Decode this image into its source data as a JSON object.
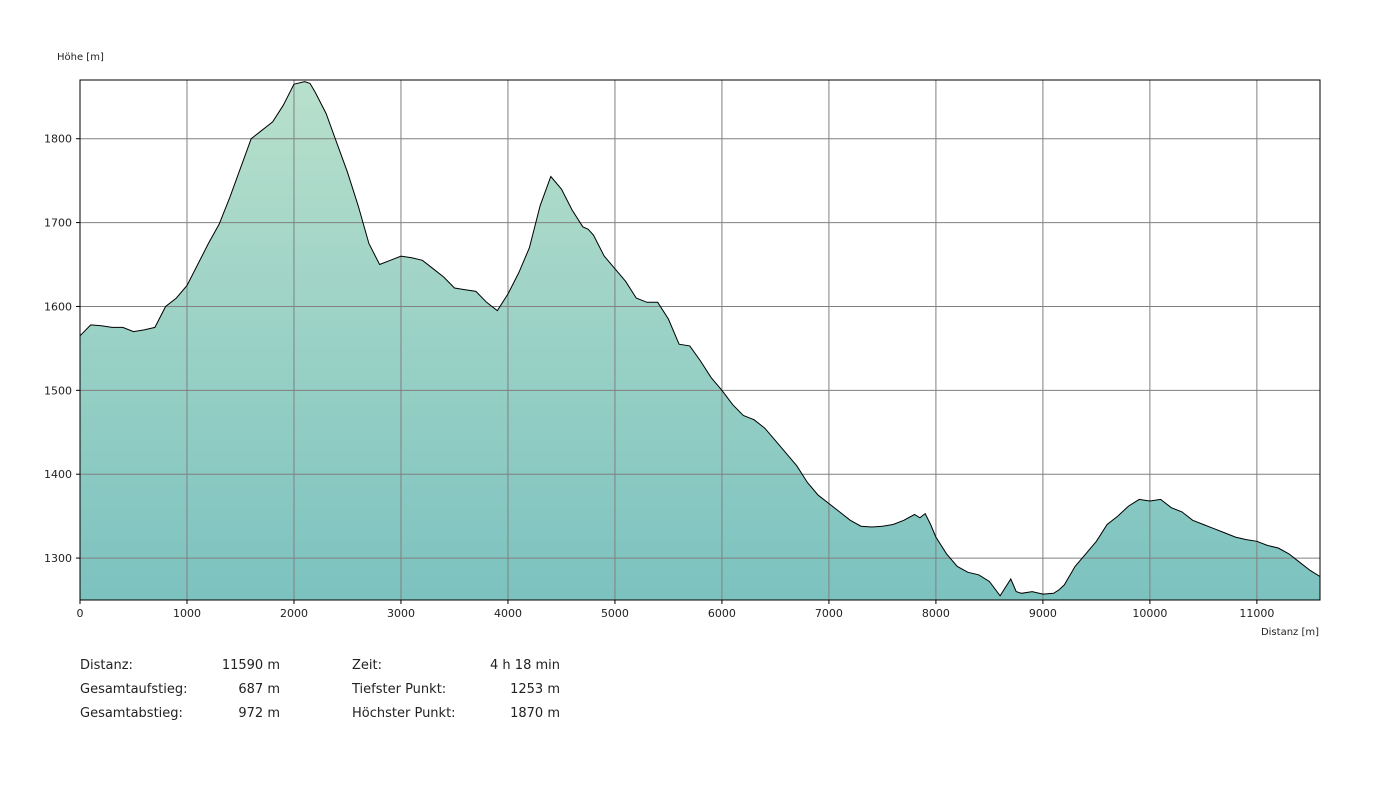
{
  "chart_data": {
    "type": "area",
    "ylabel": "Höhe [m]",
    "xlabel": "Distanz [m]",
    "xlim": [
      0,
      11590
    ],
    "ylim": [
      1250,
      1870
    ],
    "x_ticks": [
      0,
      1000,
      2000,
      3000,
      4000,
      5000,
      6000,
      7000,
      8000,
      9000,
      10000,
      11000
    ],
    "y_ticks": [
      1300,
      1400,
      1500,
      1600,
      1700,
      1800
    ],
    "grid": true,
    "fill_colors": [
      "#b8e0cc",
      "#7cc2bf"
    ],
    "line_color": "#000000",
    "points": [
      [
        0,
        1565
      ],
      [
        100,
        1578
      ],
      [
        200,
        1577
      ],
      [
        300,
        1575
      ],
      [
        400,
        1575
      ],
      [
        500,
        1570
      ],
      [
        600,
        1572
      ],
      [
        700,
        1575
      ],
      [
        800,
        1600
      ],
      [
        900,
        1610
      ],
      [
        1000,
        1625
      ],
      [
        1100,
        1650
      ],
      [
        1200,
        1675
      ],
      [
        1300,
        1698
      ],
      [
        1400,
        1730
      ],
      [
        1500,
        1765
      ],
      [
        1600,
        1800
      ],
      [
        1700,
        1810
      ],
      [
        1800,
        1820
      ],
      [
        1900,
        1840
      ],
      [
        2000,
        1865
      ],
      [
        2100,
        1868
      ],
      [
        2150,
        1866
      ],
      [
        2200,
        1855
      ],
      [
        2300,
        1830
      ],
      [
        2400,
        1795
      ],
      [
        2500,
        1760
      ],
      [
        2600,
        1720
      ],
      [
        2700,
        1675
      ],
      [
        2800,
        1650
      ],
      [
        2900,
        1655
      ],
      [
        3000,
        1660
      ],
      [
        3100,
        1658
      ],
      [
        3200,
        1655
      ],
      [
        3300,
        1645
      ],
      [
        3400,
        1635
      ],
      [
        3500,
        1622
      ],
      [
        3600,
        1620
      ],
      [
        3700,
        1618
      ],
      [
        3800,
        1605
      ],
      [
        3900,
        1595
      ],
      [
        4000,
        1615
      ],
      [
        4100,
        1640
      ],
      [
        4200,
        1670
      ],
      [
        4300,
        1720
      ],
      [
        4400,
        1755
      ],
      [
        4500,
        1740
      ],
      [
        4600,
        1715
      ],
      [
        4700,
        1695
      ],
      [
        4750,
        1692
      ],
      [
        4800,
        1685
      ],
      [
        4900,
        1660
      ],
      [
        5000,
        1645
      ],
      [
        5100,
        1630
      ],
      [
        5200,
        1610
      ],
      [
        5300,
        1605
      ],
      [
        5400,
        1605
      ],
      [
        5500,
        1585
      ],
      [
        5600,
        1555
      ],
      [
        5700,
        1553
      ],
      [
        5800,
        1535
      ],
      [
        5900,
        1515
      ],
      [
        6000,
        1500
      ],
      [
        6100,
        1483
      ],
      [
        6200,
        1470
      ],
      [
        6300,
        1465
      ],
      [
        6400,
        1455
      ],
      [
        6500,
        1440
      ],
      [
        6600,
        1425
      ],
      [
        6700,
        1410
      ],
      [
        6800,
        1390
      ],
      [
        6900,
        1375
      ],
      [
        7000,
        1365
      ],
      [
        7100,
        1355
      ],
      [
        7200,
        1345
      ],
      [
        7300,
        1338
      ],
      [
        7400,
        1337
      ],
      [
        7500,
        1338
      ],
      [
        7600,
        1340
      ],
      [
        7700,
        1345
      ],
      [
        7800,
        1352
      ],
      [
        7850,
        1348
      ],
      [
        7900,
        1353
      ],
      [
        7950,
        1340
      ],
      [
        8000,
        1325
      ],
      [
        8100,
        1305
      ],
      [
        8200,
        1290
      ],
      [
        8300,
        1283
      ],
      [
        8400,
        1280
      ],
      [
        8500,
        1272
      ],
      [
        8600,
        1255
      ],
      [
        8700,
        1275
      ],
      [
        8750,
        1260
      ],
      [
        8800,
        1258
      ],
      [
        8900,
        1260
      ],
      [
        9000,
        1257
      ],
      [
        9100,
        1258
      ],
      [
        9150,
        1262
      ],
      [
        9200,
        1268
      ],
      [
        9300,
        1290
      ],
      [
        9400,
        1305
      ],
      [
        9500,
        1320
      ],
      [
        9600,
        1340
      ],
      [
        9700,
        1350
      ],
      [
        9800,
        1362
      ],
      [
        9900,
        1370
      ],
      [
        10000,
        1368
      ],
      [
        10100,
        1370
      ],
      [
        10200,
        1360
      ],
      [
        10300,
        1355
      ],
      [
        10400,
        1345
      ],
      [
        10500,
        1340
      ],
      [
        10600,
        1335
      ],
      [
        10700,
        1330
      ],
      [
        10800,
        1325
      ],
      [
        10900,
        1322
      ],
      [
        11000,
        1320
      ],
      [
        11100,
        1315
      ],
      [
        11200,
        1312
      ],
      [
        11300,
        1305
      ],
      [
        11400,
        1295
      ],
      [
        11500,
        1285
      ],
      [
        11590,
        1278
      ]
    ]
  },
  "stats": {
    "left": [
      {
        "label": "Distanz:",
        "value": "11590 m"
      },
      {
        "label": "Gesamtaufstieg:",
        "value": "687 m"
      },
      {
        "label": "Gesamtabstieg:",
        "value": "972 m"
      }
    ],
    "right": [
      {
        "label": "Zeit:",
        "value": "4 h 18 min"
      },
      {
        "label": "Tiefster Punkt:",
        "value": "1253 m"
      },
      {
        "label": "Höchster Punkt:",
        "value": "1870 m"
      }
    ]
  }
}
